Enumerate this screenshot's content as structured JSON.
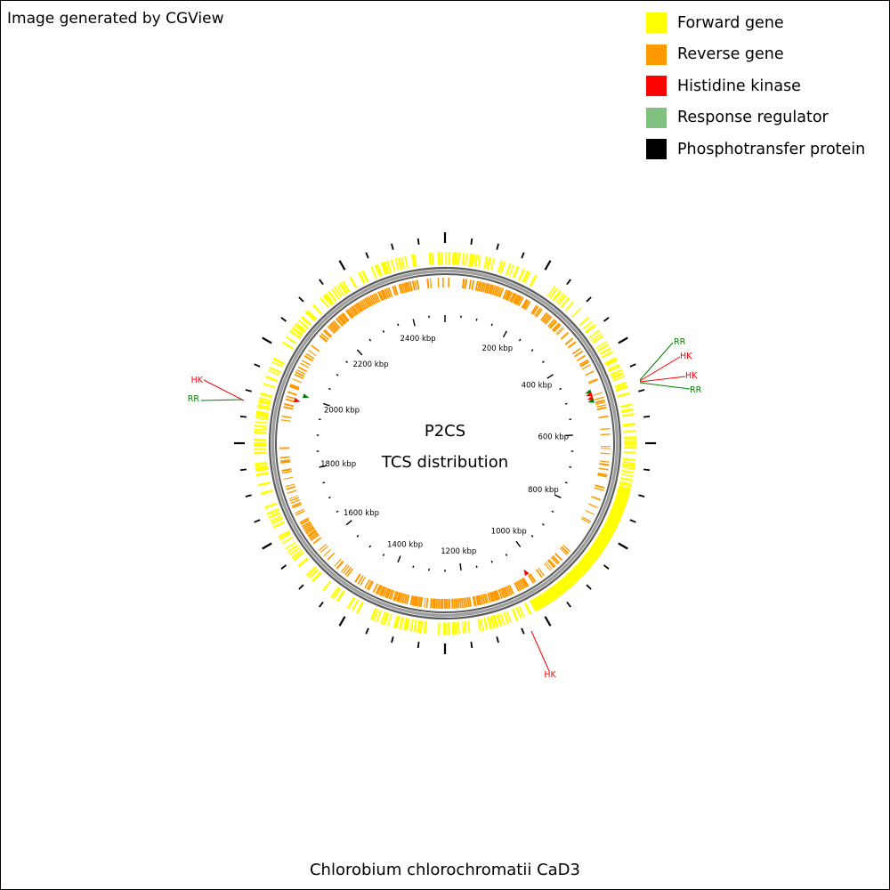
{
  "credit": "Image generated by CGView",
  "legend": [
    {
      "label": "Forward gene",
      "color": "#FFFF00"
    },
    {
      "label": "Reverse gene",
      "color": "#FF9900"
    },
    {
      "label": "Histidine kinase",
      "color": "#FF0000"
    },
    {
      "label": "Response regulator",
      "color": "#80C080"
    },
    {
      "label": "Phosphotransfer protein",
      "color": "#000000"
    }
  ],
  "map": {
    "title_line1": "P2CS",
    "title_line2": "TCS distribution",
    "tick_labels": [
      "200 kbp",
      "400 kbp",
      "600 kbp",
      "800 kbp",
      "1000 kbp",
      "1200 kbp",
      "1400 kbp",
      "1600 kbp",
      "1800 kbp",
      "2000 kbp",
      "2200 kbp",
      "2400 kbp"
    ],
    "features": [
      {
        "type": "RR",
        "label": "RR",
        "color": "#008000"
      },
      {
        "type": "HK",
        "label": "HK",
        "color": "#FF0000"
      },
      {
        "type": "HK",
        "label": "HK",
        "color": "#FF0000"
      },
      {
        "type": "RR",
        "label": "RR",
        "color": "#008000"
      },
      {
        "type": "HK",
        "label": "HK",
        "color": "#FF0000"
      },
      {
        "type": "RR",
        "label": "RR",
        "color": "#008000"
      },
      {
        "type": "HK",
        "label": "HK",
        "color": "#FF0000"
      }
    ]
  },
  "footer": "Chlorobium chlorochromatii CaD3"
}
